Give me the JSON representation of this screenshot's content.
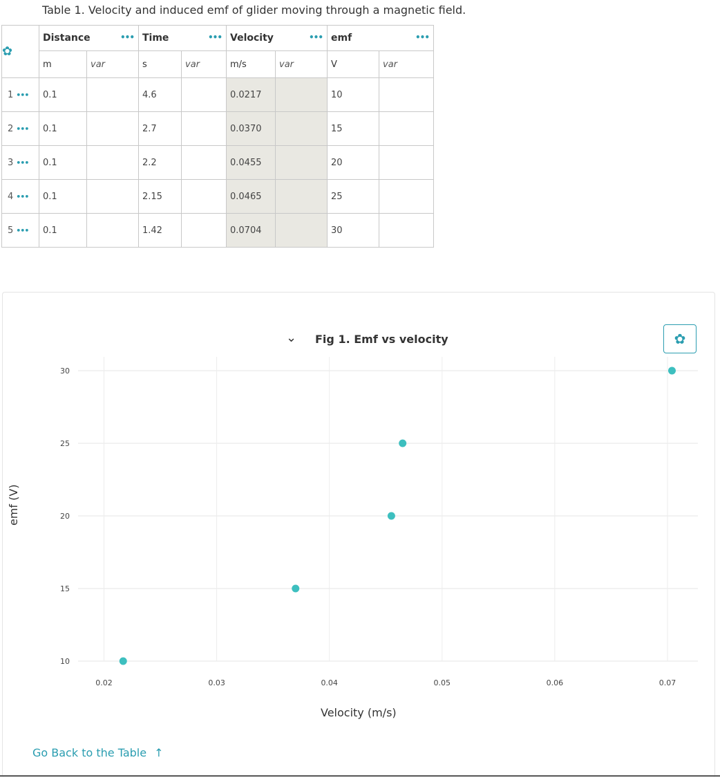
{
  "table": {
    "caption": "Table 1. Velocity and induced emf of glider moving through a magnetic field.",
    "columns": [
      {
        "name": "Distance",
        "unit": "m",
        "var": "var",
        "calculated": false
      },
      {
        "name": "Time",
        "unit": "s",
        "var": "var",
        "calculated": false
      },
      {
        "name": "Velocity",
        "unit": "m/s",
        "var": "var",
        "calculated": true
      },
      {
        "name": "emf",
        "unit": "V",
        "var": "var",
        "calculated": false
      }
    ],
    "rows": [
      {
        "num": "1",
        "cells": [
          "0.1",
          "4.6",
          "0.0217",
          "10"
        ]
      },
      {
        "num": "2",
        "cells": [
          "0.1",
          "2.7",
          "0.0370",
          "15"
        ]
      },
      {
        "num": "3",
        "cells": [
          "0.1",
          "2.2",
          "0.0455",
          "20"
        ]
      },
      {
        "num": "4",
        "cells": [
          "0.1",
          "2.15",
          "0.0465",
          "25"
        ]
      },
      {
        "num": "5",
        "cells": [
          "0.1",
          "1.42",
          "0.0704",
          "30"
        ]
      }
    ]
  },
  "figure": {
    "title": "Fig 1. Emf vs velocity",
    "back_link": "Go Back to the Table"
  },
  "chart_data": {
    "type": "scatter",
    "title": "Fig 1. Emf vs velocity",
    "xlabel": "Velocity (m/s)",
    "ylabel": "emf (V)",
    "xlim": [
      0.0177,
      0.0727
    ],
    "ylim": [
      10,
      30
    ],
    "xticks": [
      "0.02",
      "0.03",
      "0.04",
      "0.05",
      "0.06",
      "0.07"
    ],
    "yticks": [
      "10",
      "15",
      "20",
      "25",
      "30"
    ],
    "grid": true,
    "color": "#3dbfbf",
    "x": [
      0.0217,
      0.037,
      0.0455,
      0.0465,
      0.0704
    ],
    "y": [
      10,
      15,
      20,
      25,
      30
    ]
  }
}
